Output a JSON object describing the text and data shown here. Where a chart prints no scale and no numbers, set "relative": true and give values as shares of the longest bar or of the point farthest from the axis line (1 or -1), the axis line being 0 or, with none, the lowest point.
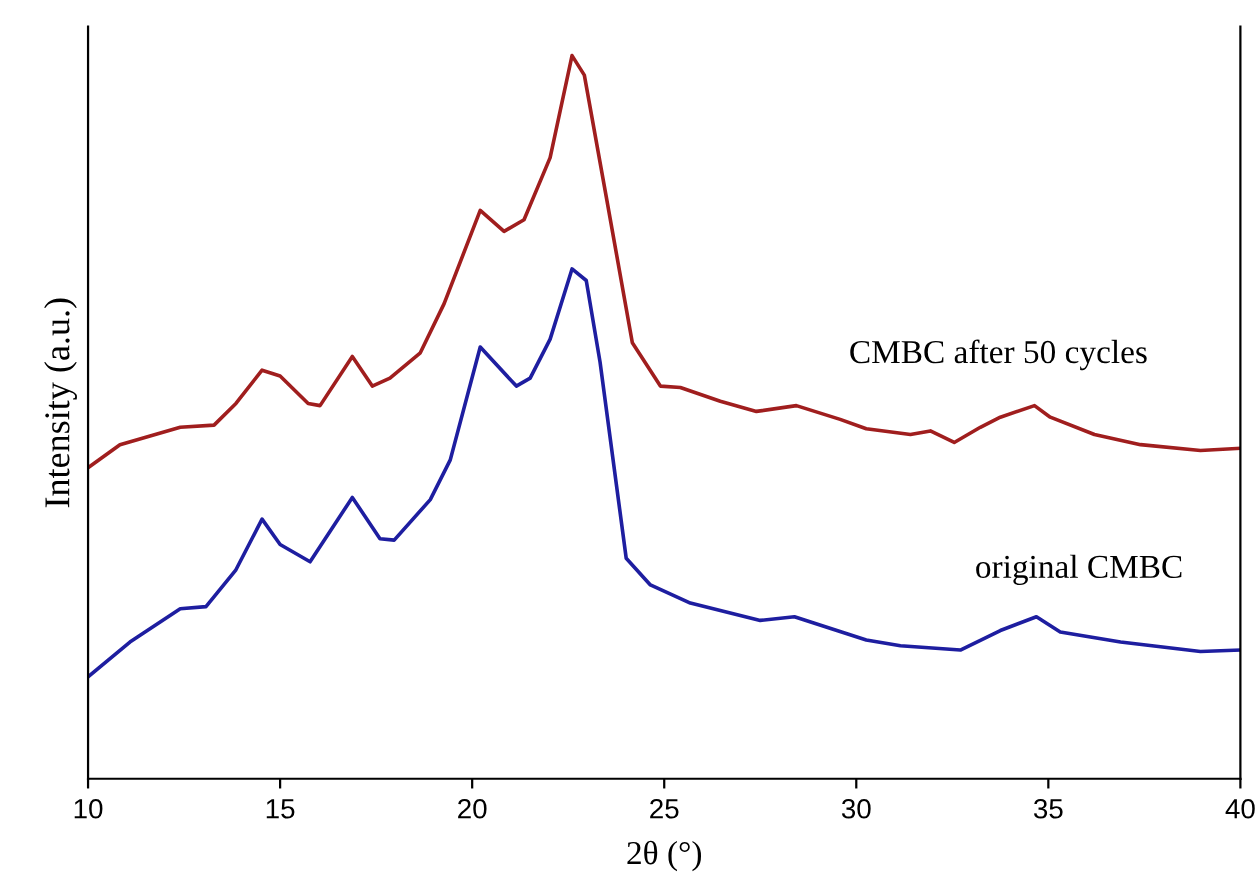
{
  "chart_data": {
    "type": "line",
    "relative": true,
    "xlabel": "2θ (°)",
    "ylabel": "Intensity (a.u.)",
    "xlim": [
      10,
      40
    ],
    "xticks": [
      10,
      15,
      20,
      25,
      30,
      35,
      40
    ],
    "tick_labels": "x",
    "grid": false,
    "legend": false,
    "line_style": "solid",
    "marker": "none",
    "series": [
      {
        "name": "CMBC after 50 cycles",
        "color": "#a01e1e",
        "x": [
          10.0,
          10.83,
          12.4,
          13.28,
          13.85,
          14.53,
          15.0,
          15.73,
          16.04,
          16.88,
          17.4,
          17.86,
          18.65,
          19.27,
          20.21,
          20.83,
          21.35,
          22.03,
          22.6,
          22.92,
          23.49,
          24.17,
          24.9,
          25.42,
          26.46,
          27.4,
          28.44,
          29.58,
          30.26,
          31.41,
          31.93,
          32.55,
          33.23,
          33.75,
          34.64,
          35.05,
          36.2,
          37.4,
          38.96,
          40.0
        ],
        "values": [
          0.43,
          0.462,
          0.486,
          0.489,
          0.519,
          0.565,
          0.557,
          0.519,
          0.516,
          0.584,
          0.543,
          0.554,
          0.589,
          0.657,
          0.786,
          0.757,
          0.773,
          0.859,
          1.0,
          0.973,
          0.805,
          0.603,
          0.543,
          0.541,
          0.522,
          0.508,
          0.516,
          0.497,
          0.484,
          0.476,
          0.481,
          0.465,
          0.486,
          0.5,
          0.516,
          0.5,
          0.476,
          0.462,
          0.454,
          0.457
        ]
      },
      {
        "name": "original CMBC",
        "color": "#1e1ea0",
        "x": [
          10.0,
          11.09,
          12.4,
          13.07,
          13.85,
          14.53,
          15.0,
          15.78,
          16.88,
          17.6,
          17.97,
          18.91,
          19.43,
          20.21,
          21.15,
          21.51,
          22.03,
          22.6,
          22.97,
          23.33,
          24.01,
          24.64,
          25.68,
          27.5,
          28.39,
          30.26,
          31.15,
          32.71,
          33.75,
          34.69,
          35.31,
          36.88,
          38.96,
          40.0
        ],
        "values": [
          0.141,
          0.189,
          0.235,
          0.238,
          0.289,
          0.359,
          0.324,
          0.3,
          0.389,
          0.332,
          0.33,
          0.386,
          0.441,
          0.597,
          0.543,
          0.554,
          0.608,
          0.705,
          0.689,
          0.576,
          0.305,
          0.268,
          0.243,
          0.219,
          0.224,
          0.192,
          0.184,
          0.178,
          0.205,
          0.224,
          0.203,
          0.189,
          0.176,
          0.178
        ]
      }
    ]
  }
}
